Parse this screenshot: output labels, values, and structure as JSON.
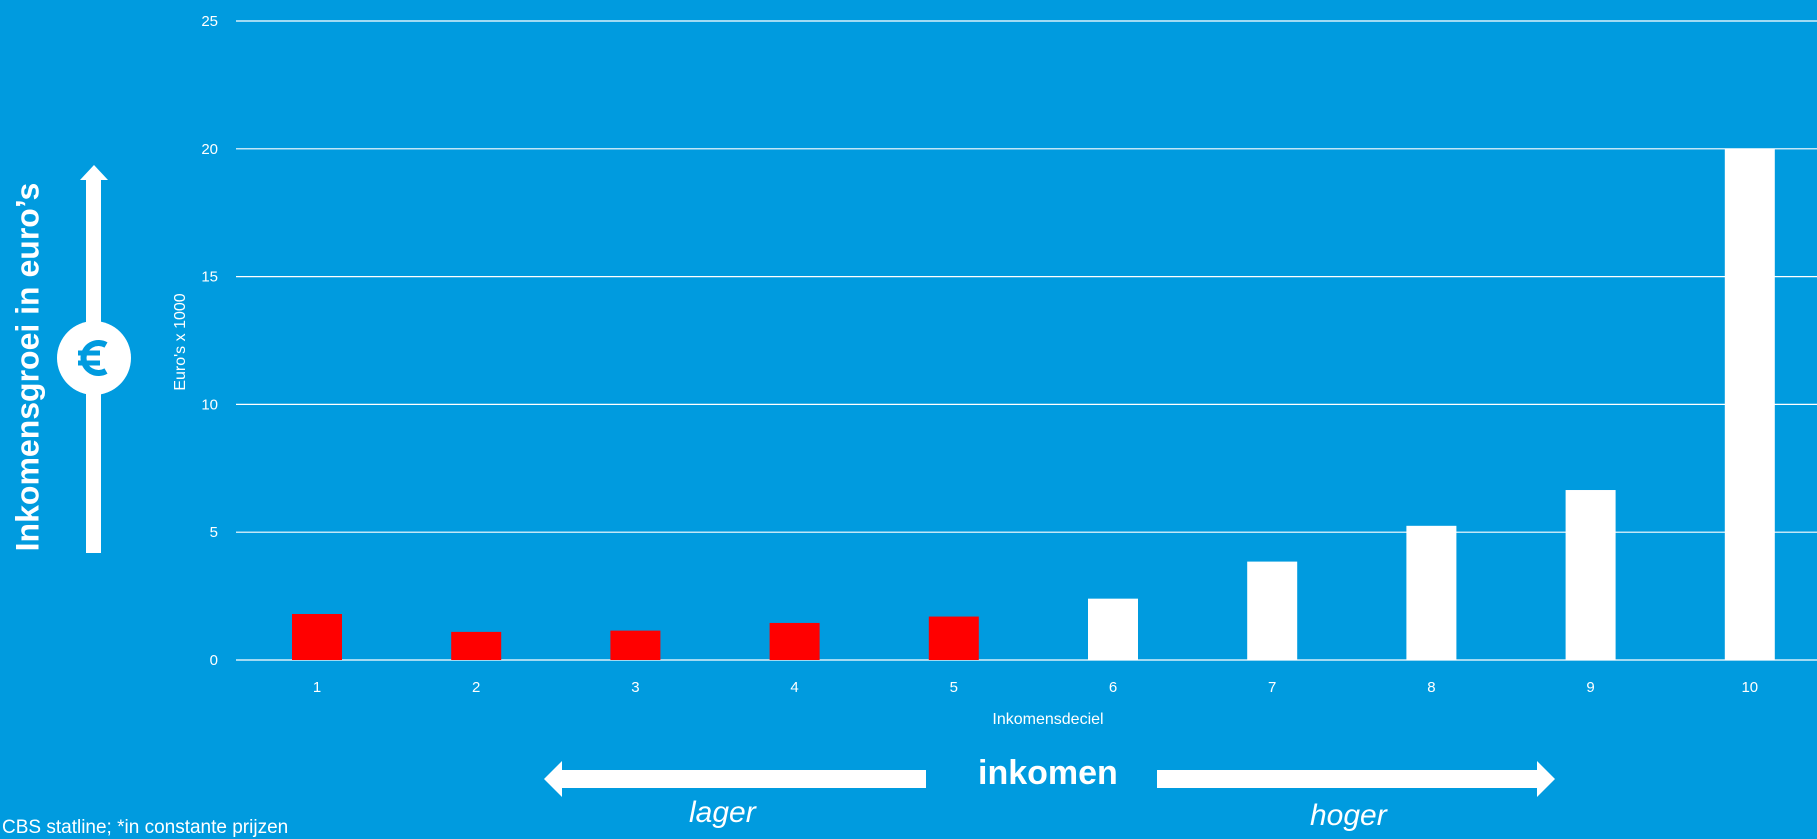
{
  "chart_data": {
    "type": "bar",
    "categories": [
      "1",
      "2",
      "3",
      "4",
      "5",
      "6",
      "7",
      "8",
      "9",
      "10"
    ],
    "values": [
      1.8,
      1.1,
      1.15,
      1.45,
      1.7,
      2.4,
      3.85,
      5.25,
      6.65,
      20.0
    ],
    "bar_colors": [
      "#ff0000",
      "#ff0000",
      "#ff0000",
      "#ff0000",
      "#ff0000",
      "#ffffff",
      "#ffffff",
      "#ffffff",
      "#ffffff",
      "#ffffff"
    ],
    "ylim": [
      0,
      25
    ],
    "yticks": [
      "0",
      "5",
      "10",
      "15",
      "20",
      "25"
    ],
    "ylabel": "Euro's x 1000",
    "xlabel": "Inkomensdeciel",
    "grid": true
  },
  "annotations": {
    "y_axis_big": "Inkomensgroei in euro’s",
    "euro_icon": "euro-coin-icon",
    "inkomen": "inkomen",
    "lager": "lager",
    "hoger": "hoger",
    "source": "CBS statline; *in constante prijzen"
  },
  "colors": {
    "background": "#009bdf",
    "negative_bar": "#ff0000",
    "positive_bar": "#ffffff"
  }
}
